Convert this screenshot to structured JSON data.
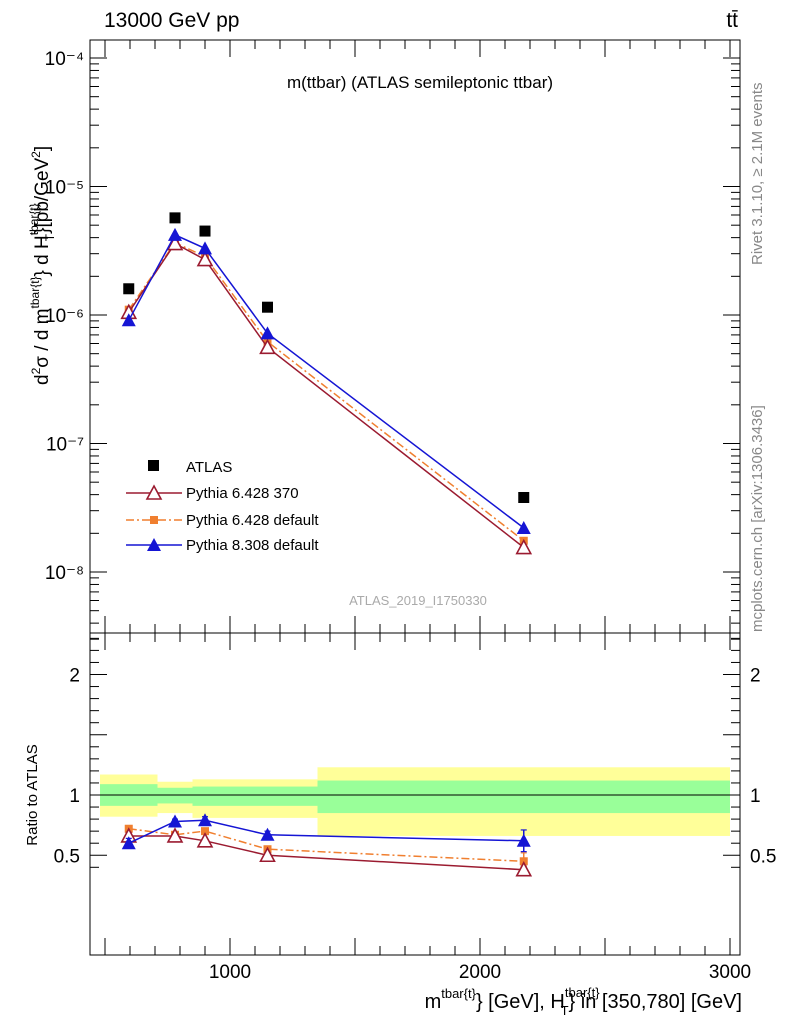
{
  "header": {
    "energy_label": "13000 GeV pp",
    "process_label": "tt̄"
  },
  "side_labels": {
    "rivet": "Rivet 3.1.10, ≥ 2.1M events",
    "mcplots": "mcplots.cern.ch [arXiv:1306.3436]"
  },
  "chart_data": [
    {
      "type": "scatter",
      "title": "m(ttbar) (ATLAS semileptonic ttbar)",
      "watermark": "ATLAS_2019_I1750330",
      "ylabel": "d²σ / d m^{tbar{t}} d H_T^{tbar{t}} [pb/GeV²]",
      "yscale": "log",
      "xlim": [
        440,
        3040
      ],
      "ylim": [
        3e-09,
        0.00015
      ],
      "yticks": [
        1e-08,
        1e-07,
        1e-06,
        1e-05,
        0.0001
      ],
      "ytick_labels": [
        "10⁻⁸",
        "10⁻⁷",
        "10⁻⁶",
        "10⁻⁵",
        "10⁻⁴"
      ],
      "legend_position": "lower-left",
      "series": [
        {
          "name": "ATLAS",
          "color": "#000000",
          "marker": "square",
          "x": [
            595,
            780,
            900,
            1150,
            2175
          ],
          "y": [
            1.6e-06,
            5.7e-06,
            4.5e-06,
            1.15e-06,
            3.8e-08
          ]
        },
        {
          "name": "Pythia 6.428 370",
          "color": "#9b1b30",
          "marker": "open-triangle",
          "line": "solid",
          "x": [
            595,
            780,
            900,
            1150,
            2175
          ],
          "y": [
            1.05e-06,
            3.6e-06,
            2.7e-06,
            5.6e-07,
            1.55e-08
          ]
        },
        {
          "name": "Pythia 6.428 default",
          "color": "#f07f2f",
          "marker": "small-square",
          "line": "dashdot",
          "x": [
            595,
            780,
            900,
            1150,
            2175
          ],
          "y": [
            1.1e-06,
            3.65e-06,
            2.85e-06,
            6.2e-07,
            1.75e-08
          ]
        },
        {
          "name": "Pythia 8.308 default",
          "color": "#1515d4",
          "marker": "triangle",
          "line": "solid",
          "x": [
            595,
            780,
            900,
            1150,
            2175
          ],
          "y": [
            9.1e-07,
            4.2e-06,
            3.3e-06,
            7.2e-07,
            2.2e-08
          ]
        }
      ]
    },
    {
      "type": "scatter",
      "ylabel": "Ratio to ATLAS",
      "xlabel": "m^{tbar{t}} [GeV], H_T^{tbar{t}} in [350,780] [GeV]",
      "xlim": [
        440,
        3040
      ],
      "ylim": [
        0.35,
        2.35
      ],
      "xticks": [
        1000,
        2000,
        3000
      ],
      "xtick_labels": [
        "1000",
        "2000",
        "3000"
      ],
      "yticks": [
        0.5,
        1,
        2
      ],
      "ytick_labels": [
        "0.5",
        "1",
        "2"
      ],
      "bands": [
        {
          "x0": 480,
          "x1": 710,
          "yellow": [
            0.82,
            1.17
          ],
          "green": [
            0.91,
            1.09
          ]
        },
        {
          "x0": 710,
          "x1": 850,
          "yellow": [
            0.85,
            1.11
          ],
          "green": [
            0.93,
            1.06
          ]
        },
        {
          "x0": 850,
          "x1": 1350,
          "yellow": [
            0.81,
            1.13
          ],
          "green": [
            0.91,
            1.07
          ]
        },
        {
          "x0": 1350,
          "x1": 3000,
          "yellow": [
            0.66,
            1.23
          ],
          "green": [
            0.85,
            1.12
          ]
        }
      ],
      "series": [
        {
          "name": "Pythia 6.428 370",
          "color": "#9b1b30",
          "marker": "open-triangle",
          "x": [
            595,
            780,
            900,
            1150,
            2175
          ],
          "y": [
            0.66,
            0.66,
            0.62,
            0.5,
            0.38
          ],
          "err": [
            0.03,
            0.02,
            0.02,
            0.02,
            0.03
          ]
        },
        {
          "name": "Pythia 6.428 default",
          "color": "#f07f2f",
          "marker": "small-square",
          "x": [
            595,
            780,
            900,
            1150,
            2175
          ],
          "y": [
            0.72,
            0.67,
            0.7,
            0.55,
            0.45
          ],
          "err": [
            0.02,
            0.02,
            0.02,
            0.02,
            0.07
          ]
        },
        {
          "name": "Pythia 8.308 default",
          "color": "#1515d4",
          "marker": "triangle",
          "x": [
            595,
            780,
            900,
            1150,
            2175
          ],
          "y": [
            0.6,
            0.78,
            0.79,
            0.67,
            0.62
          ],
          "err": [
            0.04,
            0.02,
            0.03,
            0.03,
            0.09
          ]
        }
      ]
    }
  ]
}
